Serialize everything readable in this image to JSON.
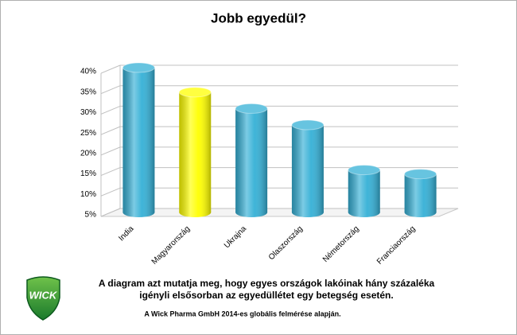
{
  "chart_data": {
    "type": "bar",
    "title": "Jobb egyedül?",
    "categories": [
      "India",
      "Magyarország",
      "Ukrajna",
      "Olaszország",
      "Németország",
      "Franciaország"
    ],
    "values": [
      40,
      34,
      30,
      26,
      15,
      14
    ],
    "colors": [
      "#35b0d6",
      "#ffff00",
      "#35b0d6",
      "#35b0d6",
      "#35b0d6",
      "#35b0d6"
    ],
    "ylim": [
      5,
      40
    ],
    "yticks": [
      {
        "value": 5,
        "label": "5%"
      },
      {
        "value": 10,
        "label": "10%"
      },
      {
        "value": 15,
        "label": "15%"
      },
      {
        "value": 20,
        "label": "20%"
      },
      {
        "value": 25,
        "label": "25%"
      },
      {
        "value": 30,
        "label": "30%"
      },
      {
        "value": 35,
        "label": "35%"
      },
      {
        "value": 40,
        "label": "40%"
      }
    ],
    "grid": true,
    "notes": [
      "A diagram azt mutatja meg, hogy egyes országok lakóinak hány százaléka",
      "igényli elsősorban  az egyedüllétet egy betegség esetén."
    ],
    "source": "A Wick Pharma GmbH 2014-es globális felmérése alapján."
  },
  "logo": "WICK"
}
